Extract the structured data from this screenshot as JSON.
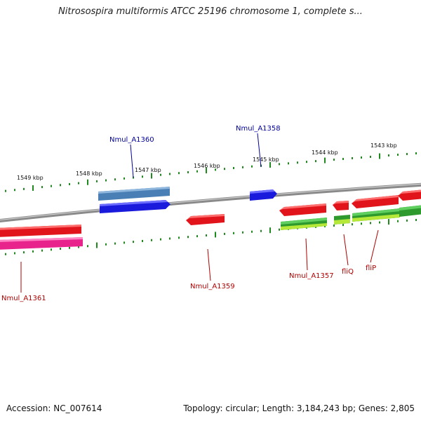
{
  "title": "Nitrosospira multiformis ATCC 25196 chromosome 1, complete s...",
  "footer": {
    "accession": "Accession: NC_007614",
    "summary": "Topology: circular; Length: 3,184,243 bp; Genes: 2,805"
  },
  "colors": {
    "backbone": "#8a8a8a",
    "ruler": "#1e8a1e",
    "gene_red": "#e0141a",
    "gene_pink": "#e8238c",
    "gene_blue": "#1a1adc",
    "gene_steelblue": "#4a7fb5",
    "gene_green": "#2e9a2e",
    "gene_lime": "#b6e83a",
    "label_red": "#b00000",
    "label_blue": "#00009a"
  },
  "ruler": {
    "labels": [
      "1549 kbp",
      "1548 kbp",
      "1547 kbp",
      "1546 kbp",
      "1545 kbp",
      "1544 kbp",
      "1543 kbp"
    ]
  },
  "genes": {
    "Nmul_A1361": "Nmul_A1361",
    "Nmul_A1360": "Nmul_A1360",
    "Nmul_A1359": "Nmul_A1359",
    "Nmul_A1358": "Nmul_A1358",
    "Nmul_A1357": "Nmul_A1357",
    "fliQ": "fliQ",
    "fliP": "fliP"
  }
}
